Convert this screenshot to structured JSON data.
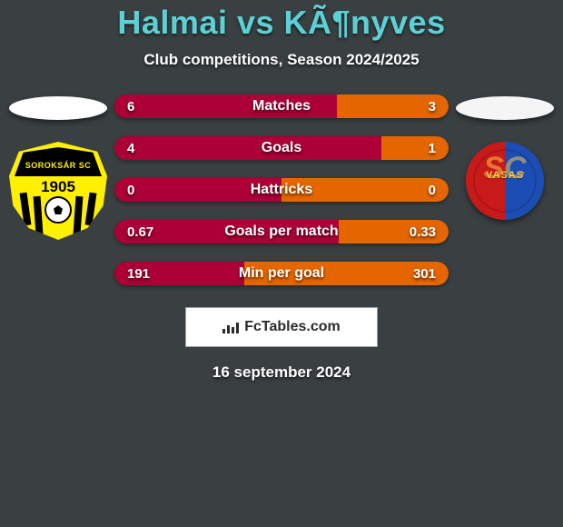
{
  "title_text": "Halmai vs KÃ¶nyves",
  "title_color": "#5dd0d6",
  "title_fontsize": 36,
  "subtitle_text": "Club competitions, Season 2024/2025",
  "subtitle_fontsize": 17,
  "background_color": "#3a4042",
  "bar_colors": {
    "left": "#ac0036",
    "right": "#e56600"
  },
  "stats": [
    {
      "label": "Matches",
      "left_val": "6",
      "right_val": "3",
      "left_pct": 66.7,
      "right_pct": 33.3
    },
    {
      "label": "Goals",
      "left_val": "4",
      "right_val": "1",
      "left_pct": 80.0,
      "right_pct": 20.0
    },
    {
      "label": "Hattricks",
      "left_val": "0",
      "right_val": "0",
      "left_pct": 50.0,
      "right_pct": 50.0
    },
    {
      "label": "Goals per match",
      "left_val": "0.67",
      "right_val": "0.33",
      "left_pct": 67.0,
      "right_pct": 33.0
    },
    {
      "label": "Min per goal",
      "left_val": "191",
      "right_val": "301",
      "left_pct": 38.8,
      "right_pct": 61.2
    }
  ],
  "team_left": {
    "name": "Soroksar SC",
    "shield_text": "SOROKSÁR SC",
    "year": "1905",
    "primary_color": "#fff000",
    "secondary_color": "#000000",
    "pill_color": "#fefefe"
  },
  "team_right": {
    "name": "Vasas SC",
    "shield_text": "VASAS",
    "left_color": "#c91a1a",
    "right_color": "#1c4db5",
    "text_color": "#ffd24a",
    "pill_color": "#f5f5f5"
  },
  "branding": {
    "text": "FcTables.com",
    "box_bg": "#ffffff",
    "box_border": "#9aa0a2"
  },
  "date_text": "16 september 2024"
}
